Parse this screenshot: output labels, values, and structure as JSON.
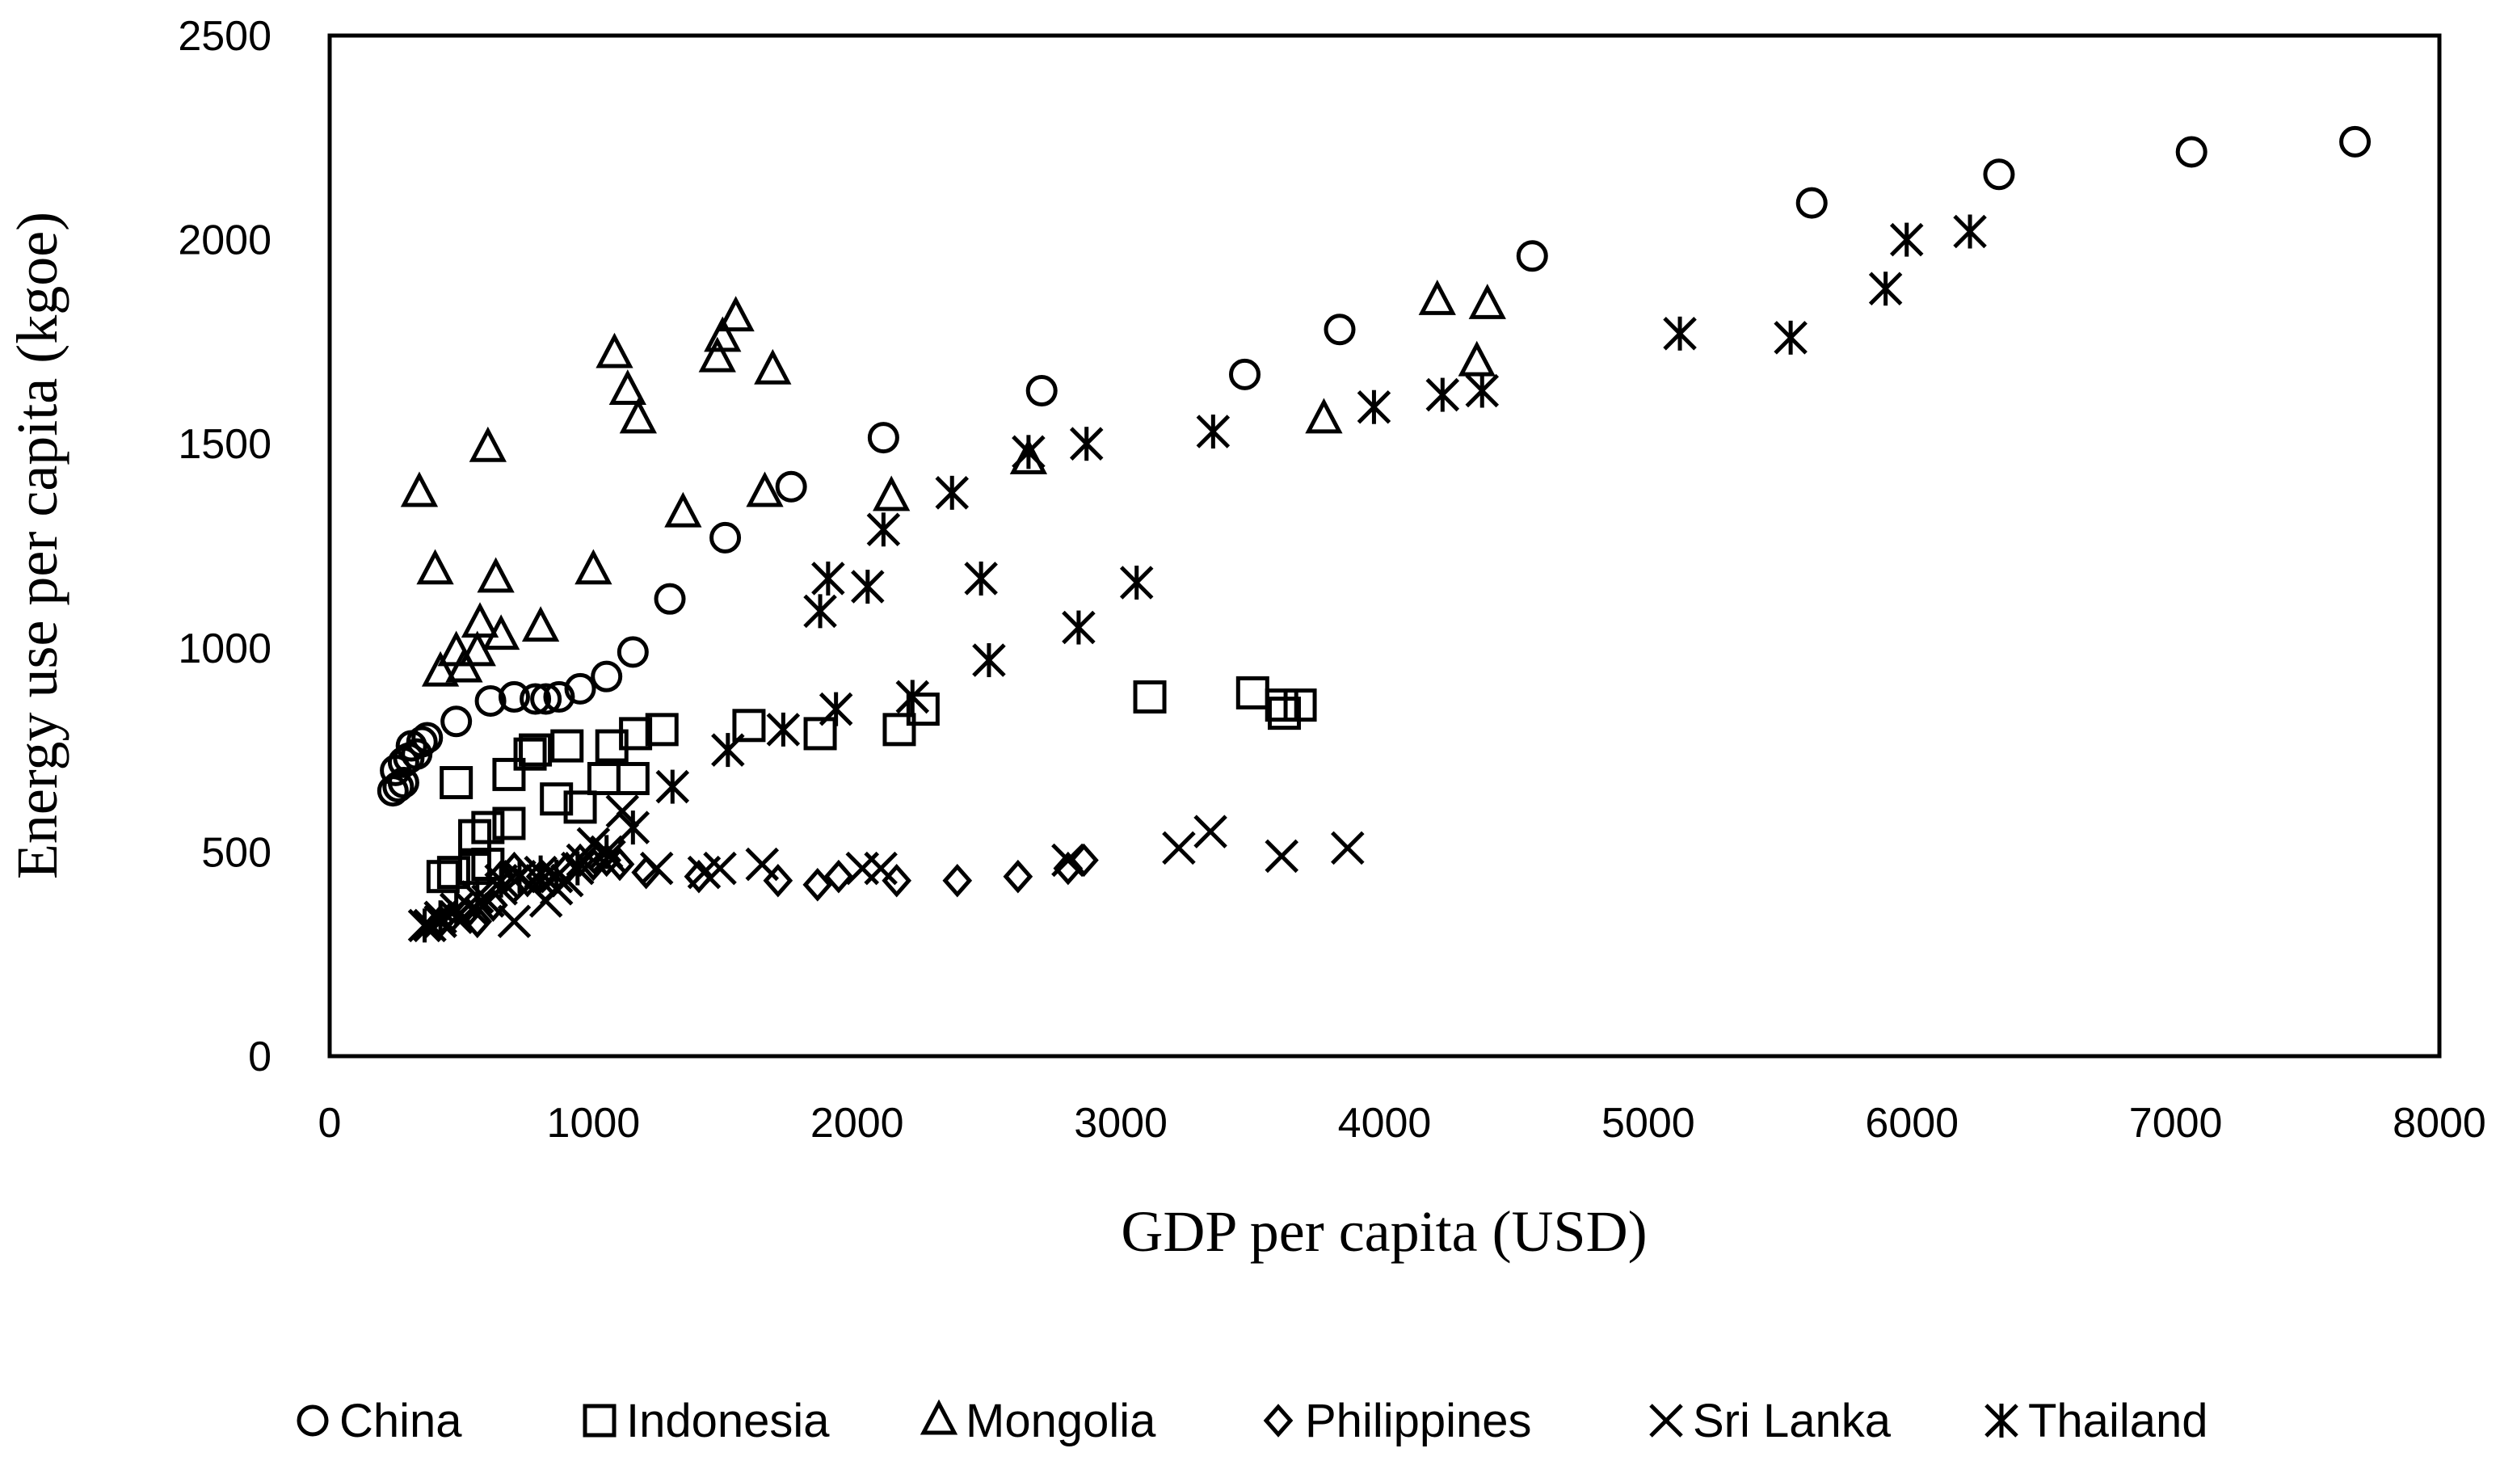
{
  "chart_data": {
    "type": "scatter",
    "title": "",
    "xlabel": "GDP per capita (USD)",
    "ylabel": "Energy use per capita (kgoe)",
    "xlim": [
      0,
      8000
    ],
    "ylim": [
      0,
      2500
    ],
    "xticks": [
      0,
      1000,
      2000,
      3000,
      4000,
      5000,
      6000,
      7000,
      8000
    ],
    "yticks": [
      0,
      500,
      1000,
      1500,
      2000,
      2500
    ],
    "xtick_labels": [
      "0",
      "1000",
      "2000",
      "3000",
      "4000",
      "5000",
      "6000",
      "7000",
      "8000"
    ],
    "ytick_labels": [
      "0",
      "500",
      "1000",
      "1500",
      "2000",
      "2500"
    ],
    "grid": false,
    "legend_position": "bottom",
    "series": [
      {
        "name": "China",
        "marker": "circle",
        "points": [
          [
            240,
            650
          ],
          [
            260,
            660
          ],
          [
            280,
            670
          ],
          [
            250,
            700
          ],
          [
            280,
            720
          ],
          [
            300,
            730
          ],
          [
            310,
            760
          ],
          [
            330,
            740
          ],
          [
            350,
            770
          ],
          [
            370,
            780
          ],
          [
            480,
            820
          ],
          [
            610,
            870
          ],
          [
            700,
            880
          ],
          [
            780,
            875
          ],
          [
            820,
            875
          ],
          [
            870,
            880
          ],
          [
            950,
            900
          ],
          [
            1050,
            930
          ],
          [
            1150,
            990
          ],
          [
            1290,
            1120
          ],
          [
            1500,
            1270
          ],
          [
            1750,
            1395
          ],
          [
            2100,
            1515
          ],
          [
            2700,
            1630
          ],
          [
            3470,
            1670
          ],
          [
            3830,
            1780
          ],
          [
            4560,
            1960
          ],
          [
            5620,
            2090
          ],
          [
            6330,
            2160
          ],
          [
            7060,
            2215
          ],
          [
            7680,
            2240
          ]
        ]
      },
      {
        "name": "Indonesia",
        "marker": "square",
        "points": [
          [
            430,
            440
          ],
          [
            470,
            450
          ],
          [
            550,
            460
          ],
          [
            600,
            470
          ],
          [
            550,
            540
          ],
          [
            600,
            560
          ],
          [
            680,
            570
          ],
          [
            480,
            670
          ],
          [
            680,
            690
          ],
          [
            760,
            740
          ],
          [
            780,
            750
          ],
          [
            900,
            760
          ],
          [
            860,
            630
          ],
          [
            950,
            610
          ],
          [
            1040,
            680
          ],
          [
            1070,
            760
          ],
          [
            1150,
            680
          ],
          [
            1160,
            790
          ],
          [
            1260,
            800
          ],
          [
            1590,
            810
          ],
          [
            1860,
            790
          ],
          [
            2160,
            800
          ],
          [
            2250,
            850
          ],
          [
            3110,
            880
          ],
          [
            3500,
            890
          ],
          [
            3610,
            860
          ],
          [
            3620,
            840
          ],
          [
            3680,
            860
          ]
        ]
      },
      {
        "name": "Mongolia",
        "marker": "triangle",
        "points": [
          [
            340,
            1380
          ],
          [
            400,
            1190
          ],
          [
            420,
            940
          ],
          [
            480,
            990
          ],
          [
            510,
            950
          ],
          [
            560,
            990
          ],
          [
            570,
            1060
          ],
          [
            600,
            1490
          ],
          [
            630,
            1170
          ],
          [
            650,
            1030
          ],
          [
            800,
            1050
          ],
          [
            1000,
            1190
          ],
          [
            1080,
            1720
          ],
          [
            1130,
            1630
          ],
          [
            1170,
            1560
          ],
          [
            1340,
            1330
          ],
          [
            1470,
            1710
          ],
          [
            1490,
            1760
          ],
          [
            1540,
            1810
          ],
          [
            1650,
            1380
          ],
          [
            1680,
            1680
          ],
          [
            2130,
            1370
          ],
          [
            2650,
            1460
          ],
          [
            3770,
            1560
          ],
          [
            4200,
            1850
          ],
          [
            4350,
            1700
          ],
          [
            4390,
            1840
          ]
        ]
      },
      {
        "name": "Philippines",
        "marker": "diamond",
        "points": [
          [
            420,
            330
          ],
          [
            460,
            340
          ],
          [
            520,
            350
          ],
          [
            560,
            330
          ],
          [
            620,
            370
          ],
          [
            650,
            440
          ],
          [
            700,
            460
          ],
          [
            750,
            430
          ],
          [
            800,
            440
          ],
          [
            850,
            430
          ],
          [
            900,
            460
          ],
          [
            950,
            480
          ],
          [
            1000,
            470
          ],
          [
            1050,
            480
          ],
          [
            1100,
            470
          ],
          [
            1200,
            450
          ],
          [
            1400,
            440
          ],
          [
            1700,
            430
          ],
          [
            1850,
            420
          ],
          [
            1930,
            440
          ],
          [
            2150,
            430
          ],
          [
            2380,
            430
          ],
          [
            2610,
            440
          ],
          [
            2800,
            460
          ],
          [
            2860,
            480
          ]
        ]
      },
      {
        "name": "Sri Lanka",
        "marker": "x",
        "points": [
          [
            380,
            320
          ],
          [
            420,
            330
          ],
          [
            480,
            340
          ],
          [
            540,
            360
          ],
          [
            600,
            380
          ],
          [
            650,
            410
          ],
          [
            700,
            330
          ],
          [
            760,
            420
          ],
          [
            820,
            380
          ],
          [
            860,
            410
          ],
          [
            900,
            430
          ],
          [
            960,
            480
          ],
          [
            1000,
            520
          ],
          [
            1060,
            490
          ],
          [
            1110,
            600
          ],
          [
            1240,
            460
          ],
          [
            1420,
            450
          ],
          [
            1480,
            460
          ],
          [
            1640,
            470
          ],
          [
            2020,
            460
          ],
          [
            2090,
            460
          ],
          [
            2800,
            480
          ],
          [
            3220,
            510
          ],
          [
            3340,
            550
          ],
          [
            3610,
            490
          ],
          [
            3860,
            510
          ]
        ]
      },
      {
        "name": "Thailand",
        "marker": "asterisk",
        "points": [
          [
            360,
            320
          ],
          [
            420,
            340
          ],
          [
            480,
            360
          ],
          [
            560,
            390
          ],
          [
            650,
            430
          ],
          [
            720,
            440
          ],
          [
            800,
            450
          ],
          [
            860,
            440
          ],
          [
            940,
            460
          ],
          [
            1050,
            500
          ],
          [
            1150,
            560
          ],
          [
            1300,
            660
          ],
          [
            1510,
            750
          ],
          [
            1720,
            800
          ],
          [
            1920,
            850
          ],
          [
            2210,
            880
          ],
          [
            2500,
            970
          ],
          [
            1860,
            1090
          ],
          [
            1890,
            1170
          ],
          [
            2040,
            1150
          ],
          [
            2100,
            1290
          ],
          [
            2360,
            1380
          ],
          [
            2470,
            1170
          ],
          [
            2650,
            1480
          ],
          [
            2840,
            1050
          ],
          [
            2870,
            1500
          ],
          [
            3060,
            1160
          ],
          [
            3350,
            1530
          ],
          [
            3960,
            1590
          ],
          [
            4220,
            1620
          ],
          [
            4370,
            1630
          ],
          [
            5120,
            1770
          ],
          [
            5540,
            1760
          ],
          [
            5900,
            1880
          ],
          [
            5980,
            2000
          ],
          [
            6220,
            2020
          ]
        ]
      }
    ]
  }
}
